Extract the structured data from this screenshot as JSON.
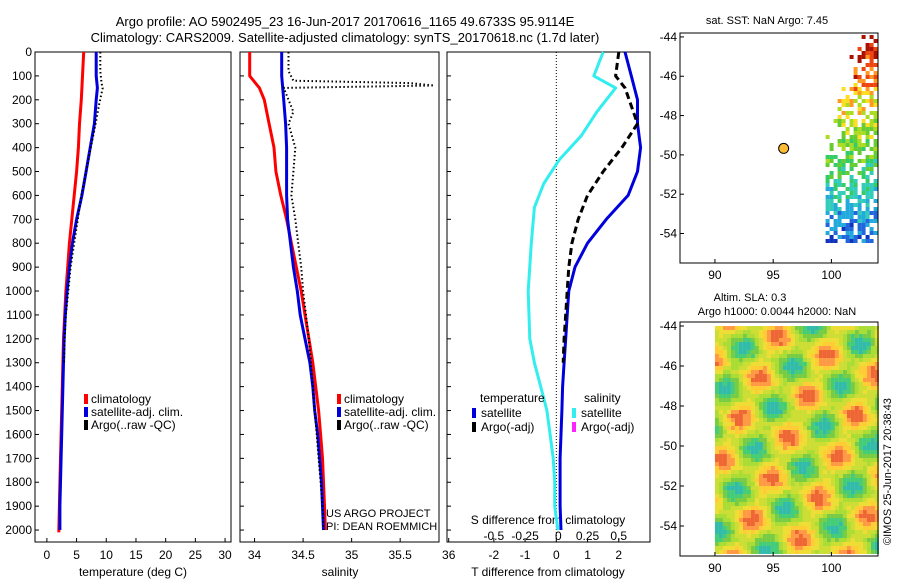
{
  "title": {
    "line1": "Argo profile: AO 5902495_23 16-Jun-2017 20170616_1165 49.6733S 95.9114E",
    "line2": "Climatology: CARS2009. Satellite-adjusted climatology: synTS_20170618.nc (1.7d later)"
  },
  "colors": {
    "climatology": "#ff0000",
    "satellite": "#0000dd",
    "argo": "#000000",
    "cyan": "#33eeee",
    "magenta": "#ff22ff"
  },
  "chart_data": [
    {
      "type": "line",
      "id": "temperature",
      "xlabel": "temperature (deg C)",
      "xlim": [
        -2,
        31
      ],
      "ylim": [
        2050,
        0
      ],
      "xticks": [
        0,
        5,
        10,
        15,
        20,
        25,
        30
      ],
      "yticks": [
        0,
        100,
        200,
        300,
        400,
        500,
        600,
        700,
        800,
        900,
        1000,
        1100,
        1200,
        1300,
        1400,
        1500,
        1600,
        1700,
        1800,
        1900,
        2000
      ],
      "legend": [
        "climatology",
        "satellite-adj. clim.",
        "Argo(..raw -QC)"
      ],
      "series": [
        {
          "name": "climatology",
          "style": "red",
          "points": [
            [
              6.2,
              0
            ],
            [
              6.0,
              100
            ],
            [
              5.8,
              200
            ],
            [
              5.5,
              300
            ],
            [
              5.3,
              400
            ],
            [
              5.0,
              500
            ],
            [
              4.6,
              600
            ],
            [
              4.2,
              700
            ],
            [
              3.8,
              800
            ],
            [
              3.5,
              900
            ],
            [
              3.2,
              1000
            ],
            [
              3.0,
              1100
            ],
            [
              2.8,
              1200
            ],
            [
              2.7,
              1300
            ],
            [
              2.6,
              1400
            ],
            [
              2.5,
              1500
            ],
            [
              2.4,
              1600
            ],
            [
              2.3,
              1700
            ],
            [
              2.2,
              1800
            ],
            [
              2.1,
              1900
            ],
            [
              2.0,
              2010
            ]
          ]
        },
        {
          "name": "satellite-adj. clim.",
          "style": "blue",
          "points": [
            [
              8.3,
              0
            ],
            [
              8.3,
              100
            ],
            [
              8.5,
              150
            ],
            [
              8.3,
              200
            ],
            [
              8.0,
              300
            ],
            [
              7.3,
              400
            ],
            [
              6.6,
              500
            ],
            [
              5.9,
              600
            ],
            [
              5.0,
              700
            ],
            [
              4.3,
              800
            ],
            [
              3.8,
              900
            ],
            [
              3.4,
              1000
            ],
            [
              3.1,
              1100
            ],
            [
              2.9,
              1200
            ],
            [
              2.8,
              1300
            ],
            [
              2.7,
              1400
            ],
            [
              2.6,
              1500
            ],
            [
              2.5,
              1600
            ],
            [
              2.4,
              1700
            ],
            [
              2.3,
              1800
            ],
            [
              2.2,
              1900
            ],
            [
              2.2,
              2000
            ]
          ]
        },
        {
          "name": "Argo(..raw -QC)",
          "style": "black-dotted",
          "points": [
            [
              9.0,
              0
            ],
            [
              9.0,
              80
            ],
            [
              9.2,
              130
            ],
            [
              9.4,
              150
            ],
            [
              8.8,
              220
            ],
            [
              8.2,
              300
            ],
            [
              7.4,
              400
            ],
            [
              6.6,
              500
            ],
            [
              5.8,
              600
            ],
            [
              5.2,
              700
            ],
            [
              4.6,
              800
            ],
            [
              4.0,
              900
            ],
            [
              3.6,
              1000
            ],
            [
              3.2,
              1100
            ],
            [
              3.0,
              1200
            ],
            [
              2.9,
              1300
            ]
          ]
        }
      ]
    },
    {
      "type": "line",
      "id": "salinity",
      "xlabel": "salinity",
      "xlim": [
        33.85,
        35.9
      ],
      "ylim": [
        2050,
        0
      ],
      "xticks": [
        34,
        34.5,
        35,
        35.5,
        36
      ],
      "legend": [
        "climatology",
        "satellite-adj. clim.",
        "Argo(..raw -QC)"
      ],
      "annotation": [
        "US ARGO PROJECT",
        "PI: DEAN ROEMMICH"
      ],
      "series": [
        {
          "name": "climatology",
          "style": "red",
          "points": [
            [
              33.95,
              0
            ],
            [
              33.95,
              100
            ],
            [
              34.05,
              150
            ],
            [
              34.1,
              200
            ],
            [
              34.15,
              300
            ],
            [
              34.2,
              400
            ],
            [
              34.22,
              500
            ],
            [
              34.27,
              600
            ],
            [
              34.33,
              700
            ],
            [
              34.38,
              800
            ],
            [
              34.43,
              900
            ],
            [
              34.48,
              1000
            ],
            [
              34.52,
              1100
            ],
            [
              34.56,
              1200
            ],
            [
              34.6,
              1300
            ],
            [
              34.63,
              1400
            ],
            [
              34.66,
              1500
            ],
            [
              34.68,
              1600
            ],
            [
              34.7,
              1700
            ],
            [
              34.71,
              1800
            ],
            [
              34.72,
              1900
            ],
            [
              34.73,
              2000
            ]
          ]
        },
        {
          "name": "satellite-adj. clim.",
          "style": "blue",
          "points": [
            [
              34.28,
              0
            ],
            [
              34.28,
              100
            ],
            [
              34.3,
              200
            ],
            [
              34.32,
              300
            ],
            [
              34.33,
              400
            ],
            [
              34.33,
              500
            ],
            [
              34.33,
              600
            ],
            [
              34.34,
              700
            ],
            [
              34.37,
              800
            ],
            [
              34.4,
              900
            ],
            [
              34.44,
              1000
            ],
            [
              34.47,
              1100
            ],
            [
              34.52,
              1200
            ],
            [
              34.57,
              1300
            ],
            [
              34.6,
              1400
            ],
            [
              34.62,
              1500
            ],
            [
              34.65,
              1600
            ],
            [
              34.67,
              1700
            ],
            [
              34.69,
              1800
            ],
            [
              34.7,
              1900
            ],
            [
              34.71,
              2000
            ]
          ]
        },
        {
          "name": "Argo(..raw -QC)",
          "style": "black-dotted",
          "points": [
            [
              34.35,
              0
            ],
            [
              34.35,
              80
            ],
            [
              34.4,
              120
            ],
            [
              35.6,
              130
            ],
            [
              35.85,
              140
            ],
            [
              34.3,
              150
            ],
            [
              34.35,
              200
            ],
            [
              34.4,
              250
            ],
            [
              34.35,
              300
            ],
            [
              34.42,
              400
            ],
            [
              34.4,
              500
            ],
            [
              34.38,
              600
            ],
            [
              34.42,
              700
            ],
            [
              34.45,
              800
            ],
            [
              34.48,
              900
            ],
            [
              34.5,
              1000
            ],
            [
              34.53,
              1100
            ],
            [
              34.56,
              1200
            ],
            [
              34.58,
              1300
            ],
            [
              34.6,
              1400
            ],
            [
              34.62,
              1500
            ],
            [
              34.64,
              1600
            ],
            [
              34.66,
              1700
            ],
            [
              34.68,
              1800
            ],
            [
              34.7,
              1900
            ],
            [
              34.71,
              2000
            ]
          ]
        }
      ]
    },
    {
      "type": "line",
      "id": "difference",
      "xlabel": "T difference from climatology",
      "xlabel_top": "S difference from climatology",
      "xlim": [
        -3.5,
        3.0
      ],
      "ylim": [
        2050,
        0
      ],
      "xticks": [
        -2,
        -1,
        0,
        1,
        2
      ],
      "xticks_top_labels": [
        "-0.5",
        "-0.25",
        "0",
        "0.25",
        "0.5"
      ],
      "legend_groups": [
        {
          "title": "temperature",
          "items": [
            "satellite",
            "Argo(-adj)"
          ]
        },
        {
          "title": "salinity",
          "items": [
            "satellite",
            "Argo(-adj)"
          ]
        }
      ],
      "series": [
        {
          "name": "T satellite",
          "style": "blue",
          "points": [
            [
              2.2,
              0
            ],
            [
              2.4,
              100
            ],
            [
              2.6,
              200
            ],
            [
              2.6,
              300
            ],
            [
              2.7,
              400
            ],
            [
              2.6,
              500
            ],
            [
              2.3,
              600
            ],
            [
              1.6,
              700
            ],
            [
              1.0,
              800
            ],
            [
              0.6,
              900
            ],
            [
              0.4,
              1000
            ],
            [
              0.35,
              1100
            ],
            [
              0.3,
              1200
            ],
            [
              0.25,
              1300
            ],
            [
              0.2,
              1400
            ],
            [
              0.18,
              1500
            ],
            [
              0.15,
              1600
            ],
            [
              0.12,
              1700
            ],
            [
              0.12,
              1800
            ],
            [
              0.12,
              1900
            ],
            [
              0.15,
              2000
            ]
          ]
        },
        {
          "name": "T Argo(-adj)",
          "style": "black-dashed",
          "points": [
            [
              2.0,
              0
            ],
            [
              1.9,
              100
            ],
            [
              2.2,
              150
            ],
            [
              2.6,
              300
            ],
            [
              2.1,
              400
            ],
            [
              1.5,
              500
            ],
            [
              1.0,
              600
            ],
            [
              0.7,
              700
            ],
            [
              0.5,
              800
            ],
            [
              0.4,
              900
            ],
            [
              0.35,
              1000
            ],
            [
              0.3,
              1100
            ],
            [
              0.25,
              1200
            ],
            [
              0.22,
              1300
            ]
          ]
        },
        {
          "name": "S satellite",
          "style": "cyan",
          "points": [
            [
              1.5,
              0
            ],
            [
              1.2,
              100
            ],
            [
              1.9,
              150
            ],
            [
              1.3,
              250
            ],
            [
              0.8,
              350
            ],
            [
              0.1,
              450
            ],
            [
              -0.4,
              550
            ],
            [
              -0.7,
              650
            ],
            [
              -0.8,
              800
            ],
            [
              -0.9,
              1000
            ],
            [
              -0.85,
              1200
            ],
            [
              -0.7,
              1300
            ],
            [
              -0.5,
              1400
            ],
            [
              -0.3,
              1500
            ],
            [
              -0.2,
              1600
            ],
            [
              -0.1,
              1700
            ],
            [
              -0.05,
              1800
            ],
            [
              -0.05,
              1900
            ],
            [
              0.05,
              2000
            ]
          ]
        }
      ]
    },
    {
      "type": "heatmap",
      "id": "sst-map",
      "title": "sat. SST: NaN Argo: 7.45",
      "xlim": [
        87,
        104
      ],
      "ylim": [
        -55.5,
        -43.8
      ],
      "xticks": [
        90,
        95,
        100
      ],
      "yticks": [
        -44,
        -46,
        -48,
        -50,
        -52,
        -54
      ],
      "marker": {
        "lon": 95.9,
        "lat": -49.67
      }
    },
    {
      "type": "heatmap",
      "id": "sla-map",
      "title": "Altim. SLA: 0.3",
      "subtitle": "Argo h1000: 0.0044 h2000: NaN",
      "xlim": [
        87,
        104
      ],
      "ylim": [
        -55.5,
        -43.8
      ],
      "xticks": [
        90,
        95,
        100
      ],
      "yticks": [
        -44,
        -46,
        -48,
        -50,
        -52,
        -54
      ]
    }
  ],
  "watermark": "©IMOS 25-Jun-2017 20:38:43"
}
